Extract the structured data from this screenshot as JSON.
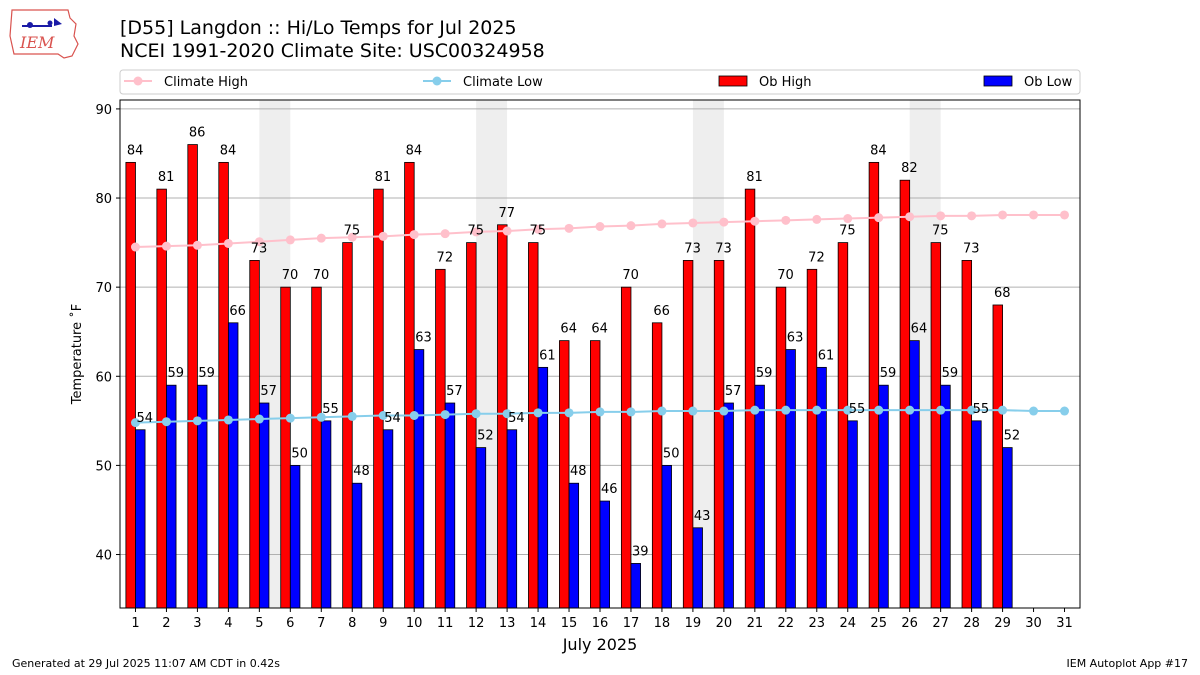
{
  "header": {
    "title_line1": "[D55] Langdon :: Hi/Lo Temps for Jul 2025",
    "title_line2": "NCEI 1991-2020 Climate Site: USC00324958",
    "logo_text": "IEM"
  },
  "footer": {
    "left": "Generated at 29 Jul 2025 11:07 AM CDT in 0.42s",
    "right": "IEM Autoplot App #17"
  },
  "chart_data": {
    "type": "bar",
    "xlabel": "July 2025",
    "ylabel": "Temperature ˚F",
    "ylim": [
      34,
      91
    ],
    "yticks": [
      40,
      50,
      60,
      70,
      80,
      90
    ],
    "grid": true,
    "legend_position": "top",
    "categories": [
      "1",
      "2",
      "3",
      "4",
      "5",
      "6",
      "7",
      "8",
      "9",
      "10",
      "11",
      "12",
      "13",
      "14",
      "15",
      "16",
      "17",
      "18",
      "19",
      "20",
      "21",
      "22",
      "23",
      "24",
      "25",
      "26",
      "27",
      "28",
      "29",
      "30",
      "31"
    ],
    "weekend_shading_days": [
      [
        5,
        6
      ],
      [
        12,
        13
      ],
      [
        19,
        20
      ],
      [
        26,
        27
      ]
    ],
    "series": [
      {
        "name": "Climate High",
        "kind": "line",
        "color": "#ffc0cb",
        "values": [
          74.5,
          74.6,
          74.7,
          74.9,
          75.1,
          75.3,
          75.5,
          75.6,
          75.7,
          75.9,
          76.0,
          76.2,
          76.3,
          76.5,
          76.6,
          76.8,
          76.9,
          77.1,
          77.2,
          77.3,
          77.4,
          77.5,
          77.6,
          77.7,
          77.8,
          77.9,
          78.0,
          78.0,
          78.1,
          78.1,
          78.1
        ]
      },
      {
        "name": "Climate Low",
        "kind": "line",
        "color": "#87ceeb",
        "values": [
          54.8,
          54.9,
          55.0,
          55.1,
          55.2,
          55.3,
          55.4,
          55.5,
          55.6,
          55.6,
          55.7,
          55.8,
          55.8,
          55.9,
          55.9,
          56.0,
          56.0,
          56.1,
          56.1,
          56.1,
          56.2,
          56.2,
          56.2,
          56.2,
          56.2,
          56.2,
          56.2,
          56.2,
          56.2,
          56.1,
          56.1
        ]
      },
      {
        "name": "Ob High",
        "kind": "bar",
        "color": "#ff0000",
        "values": [
          84,
          81,
          86,
          84,
          73,
          70,
          70,
          75,
          81,
          84,
          72,
          75,
          77,
          75,
          64,
          64,
          70,
          66,
          73,
          73,
          81,
          70,
          72,
          75,
          84,
          82,
          75,
          73,
          68,
          null,
          null
        ]
      },
      {
        "name": "Ob Low",
        "kind": "bar",
        "color": "#0000ff",
        "values": [
          54,
          59,
          59,
          66,
          57,
          50,
          55,
          48,
          54,
          63,
          57,
          52,
          54,
          61,
          48,
          46,
          39,
          50,
          43,
          57,
          59,
          63,
          61,
          55,
          59,
          64,
          59,
          55,
          52,
          null,
          null
        ]
      }
    ]
  }
}
